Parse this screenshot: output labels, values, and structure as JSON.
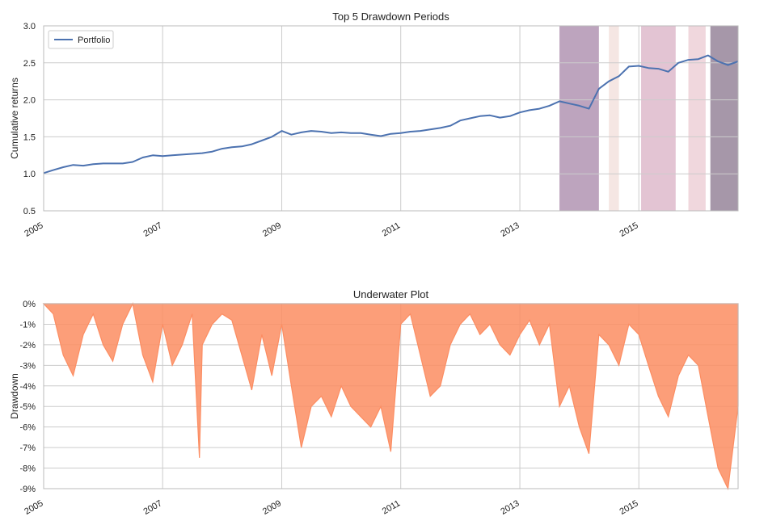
{
  "chart_data": [
    {
      "type": "line",
      "title": "Top 5 Drawdown Periods",
      "xlabel": "",
      "ylabel": "Cumulative returns",
      "xlim": [
        "2005-01-01",
        "2016-09-01"
      ],
      "ylim": [
        0.5,
        3.0
      ],
      "yticks": [
        "0.5",
        "1.0",
        "1.5",
        "2.0",
        "2.5",
        "3.0"
      ],
      "yticks_values": [
        0.5,
        1.0,
        1.5,
        2.0,
        2.5,
        3.0
      ],
      "xticks": [
        "2005",
        "2007",
        "2009",
        "2011",
        "2013",
        "2015"
      ],
      "xticks_values": [
        "2005-01-01",
        "2007-01-01",
        "2009-01-01",
        "2011-01-01",
        "2013-01-01",
        "2015-01-01"
      ],
      "grid": true,
      "legend": {
        "placement": "top-left",
        "entries": [
          "Portfolio"
        ]
      },
      "line_color": "#4c72b0",
      "series": [
        {
          "name": "Portfolio",
          "x": [
            "2005-01-01",
            "2005-03-01",
            "2005-05-01",
            "2005-07-01",
            "2005-09-01",
            "2005-11-01",
            "2006-01-01",
            "2006-03-01",
            "2006-05-01",
            "2006-07-01",
            "2006-09-01",
            "2006-11-01",
            "2007-01-01",
            "2007-03-01",
            "2007-05-01",
            "2007-07-01",
            "2007-09-01",
            "2007-11-01",
            "2008-01-01",
            "2008-03-01",
            "2008-05-01",
            "2008-07-01",
            "2008-09-01",
            "2008-11-01",
            "2009-01-01",
            "2009-03-01",
            "2009-05-01",
            "2009-07-01",
            "2009-09-01",
            "2009-11-01",
            "2010-01-01",
            "2010-03-01",
            "2010-05-01",
            "2010-07-01",
            "2010-09-01",
            "2010-11-01",
            "2011-01-01",
            "2011-03-01",
            "2011-05-01",
            "2011-07-01",
            "2011-09-01",
            "2011-11-01",
            "2012-01-01",
            "2012-03-01",
            "2012-05-01",
            "2012-07-01",
            "2012-09-01",
            "2012-11-01",
            "2013-01-01",
            "2013-03-01",
            "2013-05-01",
            "2013-07-01",
            "2013-09-01",
            "2013-11-01",
            "2014-01-01",
            "2014-03-01",
            "2014-05-01",
            "2014-07-01",
            "2014-09-01",
            "2014-11-01",
            "2015-01-01",
            "2015-03-01",
            "2015-05-01",
            "2015-07-01",
            "2015-09-01",
            "2015-11-01",
            "2016-01-01",
            "2016-03-01",
            "2016-05-01",
            "2016-07-01",
            "2016-09-01"
          ],
          "values": [
            1.01,
            1.05,
            1.09,
            1.12,
            1.11,
            1.13,
            1.14,
            1.14,
            1.14,
            1.16,
            1.22,
            1.25,
            1.24,
            1.25,
            1.26,
            1.27,
            1.28,
            1.3,
            1.34,
            1.36,
            1.37,
            1.4,
            1.45,
            1.5,
            1.58,
            1.53,
            1.56,
            1.58,
            1.57,
            1.55,
            1.56,
            1.55,
            1.55,
            1.53,
            1.51,
            1.54,
            1.55,
            1.57,
            1.58,
            1.6,
            1.62,
            1.65,
            1.72,
            1.75,
            1.78,
            1.79,
            1.76,
            1.78,
            1.83,
            1.86,
            1.88,
            1.92,
            1.98,
            1.95,
            1.92,
            1.88,
            2.15,
            2.25,
            2.32,
            2.45,
            2.46,
            2.43,
            2.42,
            2.38,
            2.5,
            2.54,
            2.55,
            2.6,
            2.52,
            2.47,
            2.52
          ]
        }
      ],
      "drawdown_periods": [
        {
          "start": "2013-09-01",
          "end": "2014-05-01",
          "color": "#7b4a7d",
          "opacity": 0.5
        },
        {
          "start": "2014-07-01",
          "end": "2014-09-01",
          "color": "#e3b8b0",
          "opacity": 0.35
        },
        {
          "start": "2015-01-15",
          "end": "2015-08-15",
          "color": "#b86b92",
          "opacity": 0.4
        },
        {
          "start": "2015-11-01",
          "end": "2016-02-15",
          "color": "#d99aaa",
          "opacity": 0.4
        },
        {
          "start": "2016-03-15",
          "end": "2016-09-01",
          "color": "#4d3054",
          "opacity": 0.5
        }
      ]
    },
    {
      "type": "area",
      "title": "Underwater Plot",
      "xlabel": "",
      "ylabel": "Drawdown",
      "xlim": [
        "2005-01-01",
        "2016-09-01"
      ],
      "ylim": [
        -9,
        0
      ],
      "yticks": [
        "0%",
        "-1%",
        "-2%",
        "-3%",
        "-4%",
        "-5%",
        "-6%",
        "-7%",
        "-8%",
        "-9%"
      ],
      "yticks_values": [
        0,
        -1,
        -2,
        -3,
        -4,
        -5,
        -6,
        -7,
        -8,
        -9
      ],
      "xticks": [
        "2005",
        "2007",
        "2009",
        "2011",
        "2013",
        "2015"
      ],
      "xticks_values": [
        "2005-01-01",
        "2007-01-01",
        "2009-01-01",
        "2011-01-01",
        "2013-01-01",
        "2015-01-01"
      ],
      "grid": true,
      "fill_color": "#fc8d62",
      "series": [
        {
          "x": [
            "2005-01-01",
            "2005-03-01",
            "2005-05-01",
            "2005-07-01",
            "2005-09-01",
            "2005-11-01",
            "2006-01-01",
            "2006-03-01",
            "2006-05-01",
            "2006-07-01",
            "2006-09-01",
            "2006-11-01",
            "2007-01-01",
            "2007-03-01",
            "2007-05-01",
            "2007-07-01",
            "2007-08-15",
            "2007-09-01",
            "2007-11-01",
            "2008-01-01",
            "2008-03-01",
            "2008-05-01",
            "2008-07-01",
            "2008-09-01",
            "2008-11-01",
            "2009-01-01",
            "2009-03-01",
            "2009-05-01",
            "2009-07-01",
            "2009-09-01",
            "2009-11-01",
            "2010-01-01",
            "2010-03-01",
            "2010-05-01",
            "2010-07-01",
            "2010-09-01",
            "2010-11-01",
            "2011-01-01",
            "2011-03-01",
            "2011-05-01",
            "2011-07-01",
            "2011-09-01",
            "2011-11-01",
            "2012-01-01",
            "2012-03-01",
            "2012-05-01",
            "2012-07-01",
            "2012-09-01",
            "2012-11-01",
            "2013-01-01",
            "2013-03-01",
            "2013-05-01",
            "2013-07-01",
            "2013-09-01",
            "2013-11-01",
            "2014-01-01",
            "2014-03-01",
            "2014-05-01",
            "2014-07-01",
            "2014-09-01",
            "2014-11-01",
            "2015-01-01",
            "2015-03-01",
            "2015-05-01",
            "2015-07-01",
            "2015-09-01",
            "2015-11-01",
            "2016-01-01",
            "2016-03-01",
            "2016-05-01",
            "2016-07-01",
            "2016-09-01"
          ],
          "values": [
            0,
            -0.5,
            -2.5,
            -3.5,
            -1.5,
            -0.5,
            -2.0,
            -2.8,
            -1.0,
            0,
            -2.5,
            -3.8,
            -1.0,
            -3.0,
            -2.0,
            -0.5,
            -7.5,
            -2.0,
            -1.0,
            -0.5,
            -0.8,
            -2.5,
            -4.2,
            -1.5,
            -3.5,
            -1.0,
            -4.0,
            -7.0,
            -5.0,
            -4.5,
            -5.5,
            -4.0,
            -5.0,
            -5.5,
            -6.0,
            -5.0,
            -7.2,
            -1.0,
            -0.5,
            -2.5,
            -4.5,
            -4.0,
            -2.0,
            -1.0,
            -0.5,
            -1.5,
            -1.0,
            -2.0,
            -2.5,
            -1.5,
            -0.8,
            -2.0,
            -1.0,
            -5.0,
            -4.0,
            -6.0,
            -7.3,
            -1.5,
            -2.0,
            -3.0,
            -1.0,
            -1.5,
            -3.0,
            -4.5,
            -5.5,
            -3.5,
            -2.5,
            -3.0,
            -5.5,
            -8.0,
            -9.0,
            -5.0
          ]
        }
      ]
    }
  ]
}
